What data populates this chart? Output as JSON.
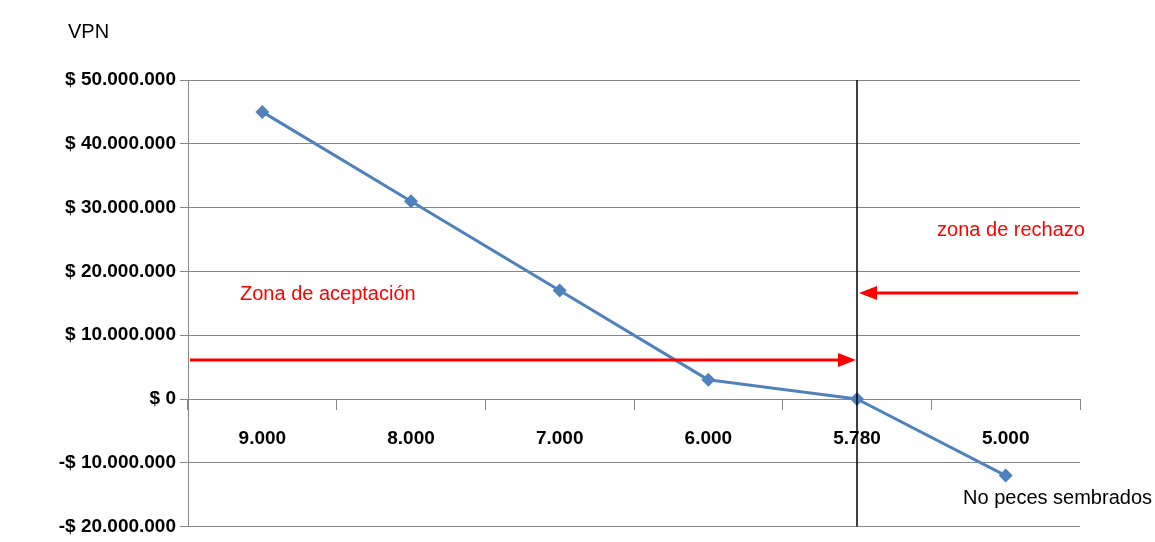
{
  "chart_data": {
    "type": "line",
    "ylabel": "VPN",
    "xlabel": "No peces sembrados",
    "categories": [
      "9.000",
      "8.000",
      "7.000",
      "6.000",
      "5.780",
      "5.000"
    ],
    "series": [
      {
        "color": "#4f81bd",
        "values": [
          45000000,
          31000000,
          17000000,
          3000000,
          0,
          -12000000
        ]
      }
    ],
    "ylim": [
      -20000000,
      50000000
    ],
    "yticks": [
      {
        "value": -20000000,
        "label": "-$ 20.000.000"
      },
      {
        "value": -10000000,
        "label": "-$ 10.000.000"
      },
      {
        "value": 0,
        "label": "$ 0"
      },
      {
        "value": 10000000,
        "label": "$ 10.000.000"
      },
      {
        "value": 20000000,
        "label": "$ 20.000.000"
      },
      {
        "value": 30000000,
        "label": "$ 30.000.000"
      },
      {
        "value": 40000000,
        "label": "$ 40.000.000"
      },
      {
        "value": 50000000,
        "label": "$ 50.000.000"
      }
    ],
    "ref_lines": [
      {
        "axis": "x",
        "value": "5.780",
        "color": "#000000"
      }
    ],
    "annotations": [
      "Zona de aceptación",
      "zona de rechazo"
    ],
    "grid": "y",
    "legend": false,
    "marker": "diamond",
    "line_style": "solid"
  }
}
